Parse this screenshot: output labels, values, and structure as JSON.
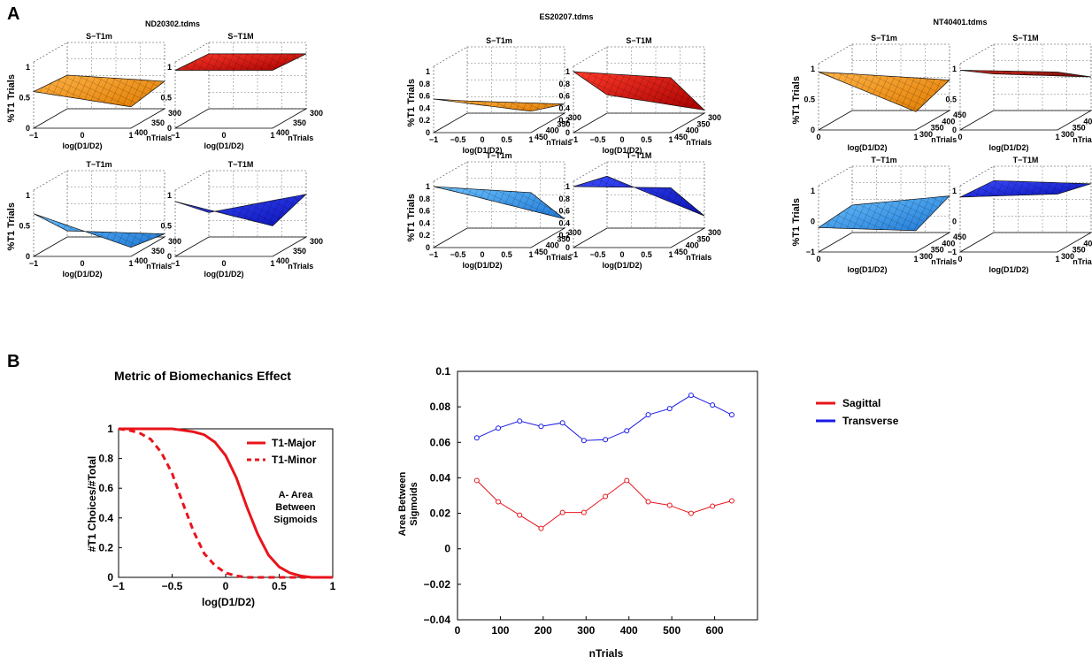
{
  "panels": {
    "a": "A",
    "b": "B"
  },
  "grid3d": {
    "files": [
      "ND20302.tdms",
      "ES20207.tdms",
      "NT40401.tdms"
    ],
    "subplot_titles": [
      "S−T1m",
      "S−T1M",
      "T−T1m",
      "T−T1M"
    ],
    "zlabel": "%T1 Trials",
    "xlabel": "log(D1/D2)",
    "ylabel": "nTrials",
    "ticks_x_short": [
      "−1",
      "0",
      "1"
    ],
    "ticks_x_long": [
      "−1",
      "−0.5",
      "0",
      "0.5",
      "1"
    ],
    "ticks_x_third": [
      "0",
      "1"
    ],
    "ticks_y_a": [
      "300",
      "350",
      "400"
    ],
    "ticks_y_b": [
      "300",
      "350",
      "400",
      "450"
    ],
    "ticks_y_c": [
      "450",
      "400",
      "350",
      "300"
    ],
    "ticks_z_a": [
      "0",
      "0.5",
      "1"
    ],
    "ticks_z_b": [
      "0",
      "0.2",
      "0.4",
      "0.6",
      "0.8",
      "1"
    ],
    "ticks_z_c": [
      "0",
      "0.5",
      "1"
    ],
    "ticks_z_c2": [
      "−1",
      "0",
      "1"
    ]
  },
  "chart_data": [
    {
      "type": "line",
      "title": "Metric of Biomechanics Effect",
      "xlabel": "log(D1/D2)",
      "ylabel": "#T1 Choices/#Total",
      "xlim": [
        -1,
        1
      ],
      "ylim": [
        0,
        1
      ],
      "xticks": [
        "−1",
        "−0.5",
        "0",
        "0.5",
        "1"
      ],
      "yticks": [
        "0",
        "0.2",
        "0.4",
        "0.6",
        "0.8",
        "1"
      ],
      "annotation": [
        "A- Area",
        "Between",
        "Sigmoids"
      ],
      "series": [
        {
          "name": "T1-Major",
          "color": "#e8141b",
          "style": "solid",
          "x": [
            -1,
            -0.9,
            -0.8,
            -0.7,
            -0.6,
            -0.5,
            -0.4,
            -0.3,
            -0.2,
            -0.1,
            0,
            0.1,
            0.2,
            0.3,
            0.4,
            0.5,
            0.6,
            0.7,
            0.8,
            0.9,
            1
          ],
          "values": [
            1,
            1,
            1,
            1,
            1,
            1,
            0.99,
            0.98,
            0.96,
            0.91,
            0.82,
            0.67,
            0.47,
            0.29,
            0.15,
            0.07,
            0.03,
            0.01,
            0,
            0,
            0
          ]
        },
        {
          "name": "T1-Minor",
          "color": "#e8141b",
          "style": "dashed",
          "x": [
            -1,
            -0.9,
            -0.8,
            -0.7,
            -0.6,
            -0.5,
            -0.4,
            -0.3,
            -0.2,
            -0.1,
            0,
            0.1,
            0.2,
            0.3,
            0.4,
            0.5,
            0.6,
            0.7,
            0.8,
            0.9,
            1
          ],
          "values": [
            1,
            0.99,
            0.97,
            0.93,
            0.84,
            0.7,
            0.5,
            0.31,
            0.16,
            0.08,
            0.03,
            0.01,
            0,
            0,
            0,
            0,
            0,
            0,
            0,
            0,
            0
          ]
        }
      ]
    },
    {
      "type": "line",
      "title": "",
      "xlabel": "nTrials",
      "ylabel": "Area Between Sigmoids",
      "ylabel_lines": [
        "Area Between",
        "Sigmoids"
      ],
      "xlim": [
        0,
        700
      ],
      "ylim": [
        -0.04,
        0.1
      ],
      "xticks": [
        "0",
        "100",
        "200",
        "300",
        "400",
        "500",
        "600"
      ],
      "yticks": [
        "−0.04",
        "−0.02",
        "0",
        "0.02",
        "0.04",
        "0.06",
        "0.08",
        "0.1"
      ],
      "legend_position": "outside-right",
      "x": [
        45,
        95,
        145,
        195,
        245,
        295,
        345,
        395,
        445,
        495,
        545,
        595,
        640
      ],
      "series": [
        {
          "name": "Sagittal",
          "color": "#e8141b",
          "values": [
            0.0385,
            0.0265,
            0.019,
            0.0115,
            0.0205,
            0.0205,
            0.0295,
            0.0385,
            0.0265,
            0.0245,
            0.02,
            0.024,
            0.027
          ]
        },
        {
          "name": "Transverse",
          "color": "#1a1ae6",
          "values": [
            0.0625,
            0.068,
            0.072,
            0.069,
            0.071,
            0.061,
            0.0615,
            0.0665,
            0.0755,
            0.079,
            0.0865,
            0.081,
            0.0755
          ]
        }
      ]
    }
  ]
}
